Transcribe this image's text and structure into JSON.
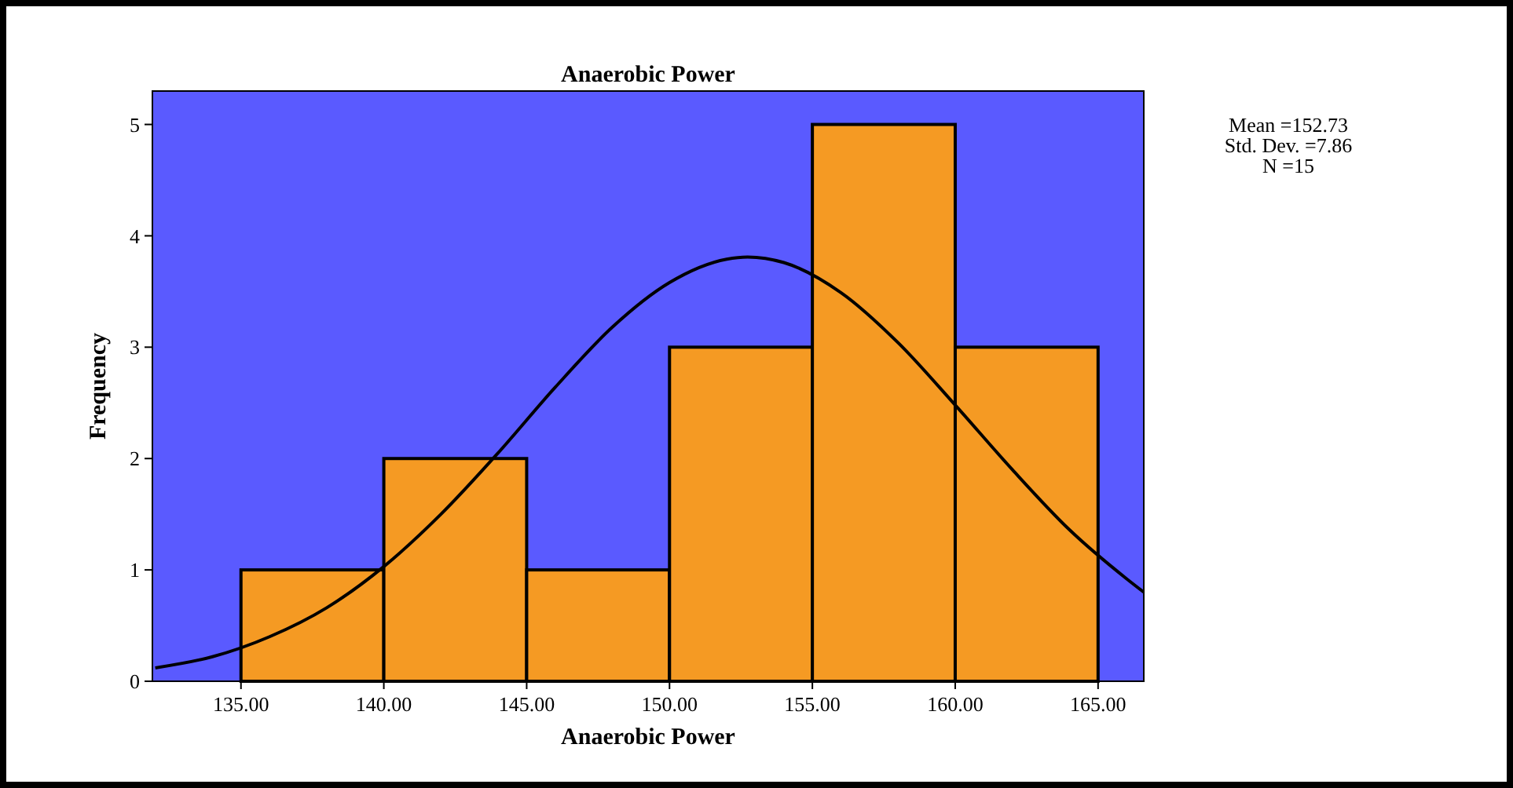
{
  "chart_data": {
    "type": "histogram",
    "title": "Anaerobic Power",
    "xlabel": "Anaerobic Power",
    "ylabel": "Frequency",
    "bins": [
      135,
      140,
      145,
      150,
      155,
      160,
      165
    ],
    "values": [
      1,
      2,
      1,
      3,
      5,
      3
    ],
    "color": "#f59a23",
    "series": [
      {
        "type": "line",
        "color": "#000000",
        "x": [
          132,
          134,
          136,
          138,
          140,
          142,
          144,
          146,
          148,
          150,
          152,
          152.73,
          154,
          156,
          158,
          160,
          162,
          164,
          166,
          166.6
        ],
        "values": [
          0.12,
          0.22,
          0.4,
          0.66,
          1.03,
          1.5,
          2.05,
          2.64,
          3.18,
          3.58,
          3.79,
          3.81,
          3.76,
          3.49,
          3.04,
          2.48,
          1.9,
          1.36,
          0.92,
          0.8
        ]
      }
    ],
    "xlim": [
      131.9,
      166.6
    ],
    "ylim": [
      0,
      5.3
    ],
    "xticks": [
      {
        "value": 135,
        "label": "135.00"
      },
      {
        "value": 140,
        "label": "140.00"
      },
      {
        "value": 145,
        "label": "145.00"
      },
      {
        "value": 150,
        "label": "150.00"
      },
      {
        "value": 155,
        "label": "155.00"
      },
      {
        "value": 160,
        "label": "160.00"
      },
      {
        "value": 165,
        "label": "165.00"
      }
    ],
    "yticks": [
      0,
      1,
      2,
      3,
      4,
      5
    ],
    "annotations": [
      "Mean =152.73",
      "Std. Dev. =7.86",
      "N =15"
    ],
    "grid": false
  }
}
